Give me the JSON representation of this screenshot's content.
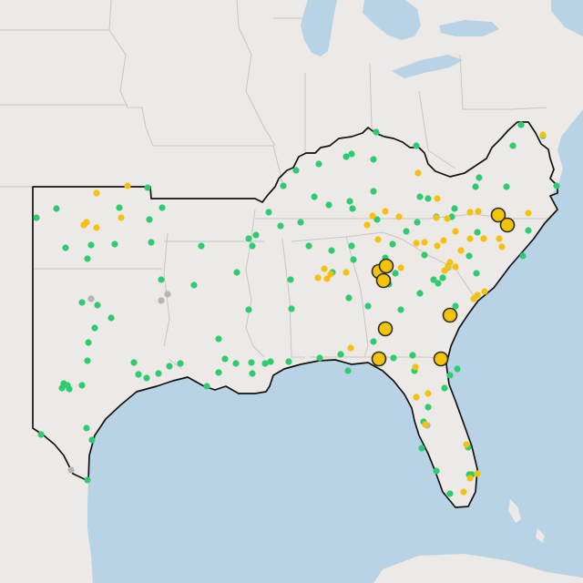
{
  "map": {
    "basemap": "light-gray-canvas",
    "colors": {
      "water": "#b9d3e6",
      "land": "#ece9e6",
      "region_outline": "#111111",
      "state_border": "#c9c6c3",
      "marker_green": "#2ecc71",
      "marker_yellow": "#f4c20d",
      "marker_gray": "#b5b5b5",
      "large_marker_fill": "#f5c400",
      "large_marker_stroke": "#2b2b2b"
    },
    "legend": "none",
    "markers": {
      "green_small": [
        [
          572,
          137
        ],
        [
          563,
          160
        ],
        [
          596,
          149
        ],
        [
          413,
          145
        ],
        [
          380,
          172
        ],
        [
          386,
          169
        ],
        [
          350,
          180
        ],
        [
          410,
          175
        ],
        [
          457,
          160
        ],
        [
          325,
          187
        ],
        [
          311,
          204
        ],
        [
          345,
          216
        ],
        [
          361,
          225
        ],
        [
          384,
          221
        ],
        [
          410,
          210
        ],
        [
          461,
          216
        ],
        [
          470,
          218
        ],
        [
          522,
          205
        ],
        [
          556,
          205
        ],
        [
          611,
          204
        ],
        [
          526,
          195
        ],
        [
          62,
          229
        ],
        [
          131,
          228
        ],
        [
          162,
          206
        ],
        [
          178,
          228
        ],
        [
          164,
          241
        ],
        [
          295,
          233
        ],
        [
          308,
          248
        ],
        [
          330,
          244
        ],
        [
          387,
          229
        ],
        [
          414,
          241
        ],
        [
          458,
          244
        ],
        [
          479,
          238
        ],
        [
          496,
          238
        ],
        [
          446,
          254
        ],
        [
          524,
          255
        ],
        [
          499,
          229
        ],
        [
          431,
          268
        ],
        [
          466,
          280
        ],
        [
          515,
          281
        ],
        [
          486,
          305
        ],
        [
          523,
          300
        ],
        [
          580,
          253
        ],
        [
          574,
          281
        ],
        [
          100,
          269
        ],
        [
          126,
          268
        ],
        [
          273,
          262
        ],
        [
          281,
          258
        ],
        [
          277,
          270
        ],
        [
          221,
          270
        ],
        [
          364,
          275
        ],
        [
          339,
          270
        ],
        [
          386,
          270
        ],
        [
          388,
          285
        ],
        [
          40,
          239
        ],
        [
          72,
          272
        ],
        [
          96,
          284
        ],
        [
          177,
          307
        ],
        [
          213,
          313
        ],
        [
          260,
          299
        ],
        [
          166,
          266
        ],
        [
          319,
          307
        ],
        [
          365,
          299
        ],
        [
          423,
          283
        ],
        [
          434,
          300
        ],
        [
          383,
          327
        ],
        [
          107,
          335
        ],
        [
          90,
          332
        ],
        [
          122,
          349
        ],
        [
          104,
          360
        ],
        [
          273,
          340
        ],
        [
          320,
          339
        ],
        [
          404,
          336
        ],
        [
          427,
          312
        ],
        [
          476,
          307
        ],
        [
          481,
          311
        ],
        [
          461,
          322
        ],
        [
          440,
          340
        ],
        [
          410,
          375
        ],
        [
          500,
          336
        ],
        [
          97,
          376
        ],
        [
          96,
          396
        ],
        [
          147,
          398
        ],
        [
          152,
          411
        ],
        [
          161,
          415
        ],
        [
          186,
          402
        ],
        [
          198,
          399
        ],
        [
          174,
          410
        ],
        [
          240,
          372
        ],
        [
          247,
          394
        ],
        [
          259,
          399
        ],
        [
          276,
          398
        ],
        [
          277,
          410
        ],
        [
          240,
          409
        ],
        [
          227,
          424
        ],
        [
          291,
          399
        ],
        [
          297,
          397
        ],
        [
          317,
          397
        ],
        [
          351,
          393
        ],
        [
          374,
          389
        ],
        [
          382,
          407
        ],
        [
          432,
          393
        ],
        [
          453,
          390
        ],
        [
          494,
          412
        ],
        [
          502,
          405
        ],
        [
          488,
          426
        ],
        [
          455,
          407
        ],
        [
          470,
          447
        ],
        [
          70,
          421
        ],
        [
          68,
          426
        ],
        [
          74,
          423
        ],
        [
          76,
          427
        ],
        [
          90,
          423
        ],
        [
          95,
          470
        ],
        [
          101,
          483
        ],
        [
          45,
          477
        ],
        [
          96,
          527
        ],
        [
          465,
          463
        ],
        [
          463,
          492
        ],
        [
          479,
          517
        ],
        [
          514,
          491
        ],
        [
          515,
          521
        ],
        [
          518,
          521
        ],
        [
          494,
          542
        ]
      ],
      "yellow_small": [
        [
          106,
          212
        ],
        [
          140,
          204
        ],
        [
          92,
          247
        ],
        [
          95,
          244
        ],
        [
          106,
          250
        ],
        [
          133,
          239
        ],
        [
          403,
          247
        ],
        [
          423,
          232
        ],
        [
          438,
          238
        ],
        [
          459,
          190
        ],
        [
          409,
          237
        ],
        [
          480,
          218
        ],
        [
          479,
          239
        ],
        [
          491,
          240
        ],
        [
          516,
          233
        ],
        [
          525,
          232
        ],
        [
          516,
          262
        ],
        [
          531,
          262
        ],
        [
          580,
          234
        ],
        [
          457,
          267
        ],
        [
          466,
          266
        ],
        [
          480,
          270
        ],
        [
          487,
          264
        ],
        [
          506,
          275
        ],
        [
          551,
          271
        ],
        [
          500,
          254
        ],
        [
          548,
          262
        ],
        [
          380,
          299
        ],
        [
          415,
          263
        ],
        [
          356,
          295
        ],
        [
          349,
          305
        ],
        [
          359,
          306
        ],
        [
          363,
          301
        ],
        [
          440,
          294
        ],
        [
          492,
          292
        ],
        [
          494,
          288
        ],
        [
          520,
          328
        ],
        [
          524,
          324
        ],
        [
          532,
          320
        ],
        [
          385,
          382
        ],
        [
          470,
          432
        ],
        [
          457,
          436
        ],
        [
          456,
          403
        ],
        [
          467,
          466
        ],
        [
          512,
          488
        ],
        [
          509,
          540
        ],
        [
          516,
          525
        ],
        [
          524,
          520
        ],
        [
          596,
          148
        ],
        [
          500,
          293
        ],
        [
          488,
          297
        ]
      ],
      "gray_small": [
        [
          100,
          328
        ],
        [
          177,
          330
        ],
        [
          184,
          323
        ],
        [
          492,
          294
        ],
        [
          469,
          467
        ],
        [
          78,
          516
        ]
      ],
      "yellow_large": [
        [
          547,
          236
        ],
        [
          557,
          247
        ],
        [
          416,
          298
        ],
        [
          424,
          292
        ],
        [
          421,
          308
        ],
        [
          423,
          361
        ],
        [
          494,
          346
        ],
        [
          416,
          394
        ],
        [
          484,
          394
        ]
      ]
    }
  }
}
